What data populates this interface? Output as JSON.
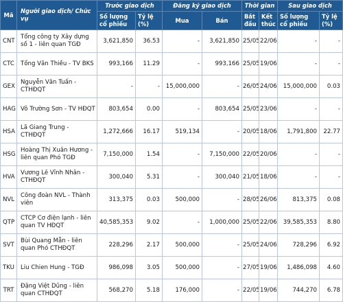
{
  "header": {
    "code_label": "Mã",
    "person_label": "Người giao dịch/ Chức vụ",
    "before_label": "Trước giao dịch",
    "register_label": "Đăng ký giao dịch",
    "time_label": "Thời gian",
    "after_label": "Sau giao dịch",
    "before_qty_label": "Số lượng cổ phiếu",
    "before_pct_label": "Tỷ lệ (%)",
    "buy_label": "Mua",
    "sell_label": "Bán",
    "start_label": "Bắt đầu",
    "end_label": "Kết thúc",
    "after_qty_label": "Số lượng cổ phiếu",
    "after_pct_label": "Tỷ lệ (%)"
  },
  "rows": [
    {
      "code": "CNT",
      "person": "Tổng công ty Xây dựng số 1 - liên quan TGĐ",
      "before_qty": "3,621,850",
      "before_pct": "36.53",
      "buy": "-",
      "sell": "3,621,850",
      "start": "25/05",
      "end": "22/06",
      "after_qty": "-",
      "after_pct": "-"
    },
    {
      "code": "CTC",
      "person": "Tống Văn Thiều - TV BKS",
      "before_qty": "993,166",
      "before_pct": "11.29",
      "buy": "-",
      "sell": "993,166",
      "start": "25/05",
      "end": "19/06",
      "after_qty": "-",
      "after_pct": "-"
    },
    {
      "code": "GEX",
      "person": "Nguyễn Văn Tuấn - CTHĐQT",
      "before_qty": "-",
      "before_pct": "-",
      "buy": "15,000,000",
      "sell": "-",
      "start": "26/05",
      "end": "24/06",
      "after_qty": "15,000,000",
      "after_pct": "0.03"
    },
    {
      "code": "HAG",
      "person": "Võ Trường Sơn - TV HĐQT",
      "before_qty": "803,654",
      "before_pct": "0.00",
      "buy": "-",
      "sell": "803,654",
      "start": "25/05",
      "end": "23/06",
      "after_qty": "-",
      "after_pct": "-"
    },
    {
      "code": "HSA",
      "person": "Lã Giang Trung - CTHĐQT",
      "before_qty": "1,272,666",
      "before_pct": "16.17",
      "buy": "519,134",
      "sell": "-",
      "start": "20/05",
      "end": "18/06",
      "after_qty": "1,791,800",
      "after_pct": "22.77"
    },
    {
      "code": "HSG",
      "person": "Hoàng Thị Xuân Hương - liên quan Phó TGĐ",
      "before_qty": "7,150,000",
      "before_pct": "1.54",
      "buy": "-",
      "sell": "7,150,000",
      "start": "22/05",
      "end": "20/06",
      "after_qty": "-",
      "after_pct": "-"
    },
    {
      "code": "HVA",
      "person": "Vương Lê Vĩnh Nhân - CTHĐQT",
      "before_qty": "300,040",
      "before_pct": "5.31",
      "buy": "-",
      "sell": "300,040",
      "start": "21/05",
      "end": "18/06",
      "after_qty": "-",
      "after_pct": "-"
    },
    {
      "code": "NVL",
      "person": "Công đoàn NVL - Thành viên",
      "before_qty": "313,375",
      "before_pct": "0.03",
      "buy": "500,000",
      "sell": "-",
      "start": "28/05",
      "end": "26/06",
      "after_qty": "813,375",
      "after_pct": "0.08"
    },
    {
      "code": "QTP",
      "person": "CTCP Cơ điện lạnh - liên quan TV HĐQT",
      "before_qty": "40,585,353",
      "before_pct": "9.02",
      "buy": "-",
      "sell": "1,000,000",
      "start": "25/05",
      "end": "22/06",
      "after_qty": "39,585,353",
      "after_pct": "8.80"
    },
    {
      "code": "SVT",
      "person": "Bùi Quang Mẫn - liên quan Phó CTHĐQT",
      "before_qty": "228,296",
      "before_pct": "2.17",
      "buy": "500,000",
      "sell": "-",
      "start": "25/05",
      "end": "24/06",
      "after_qty": "728,296",
      "after_pct": "6.92"
    },
    {
      "code": "TKU",
      "person": "Liu Chien Hung - TGĐ",
      "before_qty": "986,098",
      "before_pct": "3.05",
      "buy": "500,000",
      "sell": "-",
      "start": "27/05",
      "end": "19/06",
      "after_qty": "1,486,098",
      "after_pct": "4.60"
    },
    {
      "code": "TRT",
      "person": "Đặng Việt Dũng - liên quan CTHĐQT",
      "before_qty": "568,270",
      "before_pct": "5.18",
      "buy": "176,000",
      "sell": "-",
      "start": "22/05",
      "end": "19/06",
      "after_qty": "744,270",
      "after_pct": "6.78"
    }
  ]
}
